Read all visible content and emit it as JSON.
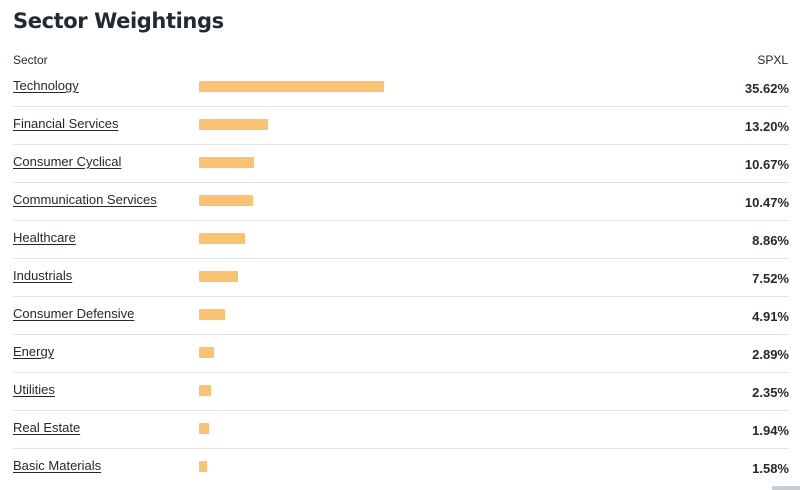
{
  "title": "Sector Weightings",
  "columns": {
    "sector": "Sector",
    "fund": "SPXL"
  },
  "bar_color": "#fbc26f",
  "rows": [
    {
      "sector": "Technology",
      "value": 35.62,
      "label": "35.62%"
    },
    {
      "sector": "Financial Services",
      "value": 13.2,
      "label": "13.20%"
    },
    {
      "sector": "Consumer Cyclical",
      "value": 10.67,
      "label": "10.67%"
    },
    {
      "sector": "Communication Services",
      "value": 10.47,
      "label": "10.47%"
    },
    {
      "sector": "Healthcare",
      "value": 8.86,
      "label": "8.86%"
    },
    {
      "sector": "Industrials",
      "value": 7.52,
      "label": "7.52%"
    },
    {
      "sector": "Consumer Defensive",
      "value": 4.91,
      "label": "4.91%"
    },
    {
      "sector": "Energy",
      "value": 2.89,
      "label": "2.89%"
    },
    {
      "sector": "Utilities",
      "value": 2.35,
      "label": "2.35%"
    },
    {
      "sector": "Real Estate",
      "value": 1.94,
      "label": "1.94%"
    },
    {
      "sector": "Basic Materials",
      "value": 1.58,
      "label": "1.58%"
    }
  ]
}
